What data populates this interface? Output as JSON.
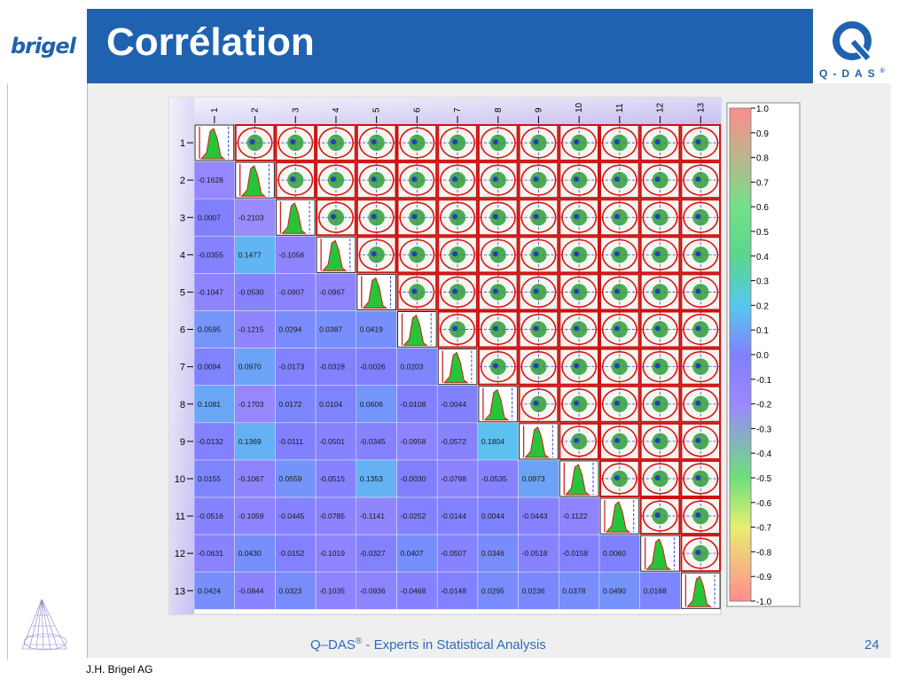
{
  "slide": {
    "title": "Corrélation",
    "brand_logo_text": "brigel",
    "qdas_logo_text": "Q-DAS",
    "registered_mark": "®",
    "footer_brand": "Q–DAS",
    "footer_tagline": " - Experts in Statistical Analysis",
    "page_number": "24",
    "author": "J.H. Brigel AG"
  },
  "colors": {
    "header_blue": "#1f62b0",
    "footer_blue": "#2a6db8",
    "background": "#efefef"
  },
  "chart_data": {
    "type": "heatmap",
    "variables": [
      "1",
      "2",
      "3",
      "4",
      "5",
      "6",
      "7",
      "8",
      "9",
      "10",
      "11",
      "12",
      "13"
    ],
    "lower_triangle_correlations": [
      [],
      [
        "-0.1628"
      ],
      [
        "0.0007",
        "-0.2103"
      ],
      [
        "-0.0355",
        "0.1477",
        "-0.1056"
      ],
      [
        "-0.1047",
        "-0.0530",
        "-0.0907",
        "-0.0967"
      ],
      [
        "0.0595",
        "-0.1215",
        "0.0294",
        "0.0387",
        "0.0419"
      ],
      [
        "0.0094",
        "0.0970",
        "-0.0173",
        "-0.0328",
        "-0.0026",
        "0.0203"
      ],
      [
        "0.1081",
        "-0.1703",
        "0.0172",
        "0.0104",
        "0.0606",
        "-0.0108",
        "-0.0044"
      ],
      [
        "-0.0132",
        "0.1369",
        "-0.0111",
        "-0.0501",
        "-0.0345",
        "-0.0958",
        "-0.0572",
        "0.1804"
      ],
      [
        "0.0155",
        "-0.1067",
        "0.0559",
        "-0.0515",
        "0.1353",
        "-0.0030",
        "-0.0798",
        "-0.0535",
        "0.0973"
      ],
      [
        "-0.0516",
        "-0.1059",
        "-0.0445",
        "-0.0785",
        "-0.1141",
        "-0.0252",
        "-0.0144",
        "0.0044",
        "-0.0443",
        "-0.1122"
      ],
      [
        "-0.0631",
        "0.0430",
        "-0.0152",
        "-0.1019",
        "-0.0327",
        "0.0407",
        "-0.0507",
        "0.0346",
        "-0.0518",
        "-0.0158",
        "0.0060"
      ],
      [
        "0.0424",
        "-0.0844",
        "0.0323",
        "-0.1035",
        "-0.0936",
        "-0.0468",
        "-0.0148",
        "0.0295",
        "0.0236",
        "0.0378",
        "0.0490",
        "0.0168"
      ]
    ],
    "diagonal": "histogram",
    "upper_triangle": "scatter",
    "colorbar": {
      "ticks": [
        "1.0",
        "0.9",
        "0.8",
        "0.7",
        "0.6",
        "0.5",
        "0.4",
        "0.3",
        "0.2",
        "0.1",
        "0.0",
        "-0.1",
        "-0.2",
        "-0.3",
        "-0.4",
        "-0.5",
        "-0.6",
        "-0.7",
        "-0.8",
        "-0.9",
        "-1.0"
      ],
      "range": [
        -1.0,
        1.0
      ],
      "stops": [
        {
          "v": 1.0,
          "c": "#ff8c8c"
        },
        {
          "v": 0.6,
          "c": "#74e08a"
        },
        {
          "v": 0.4,
          "c": "#5ad68c"
        },
        {
          "v": 0.2,
          "c": "#56c8ee"
        },
        {
          "v": 0.0,
          "c": "#8080ff"
        },
        {
          "v": -0.2,
          "c": "#9b88ff"
        },
        {
          "v": -0.5,
          "c": "#6ce07c"
        },
        {
          "v": -0.7,
          "c": "#e8ee70"
        },
        {
          "v": -1.0,
          "c": "#ff8c8c"
        }
      ]
    }
  }
}
